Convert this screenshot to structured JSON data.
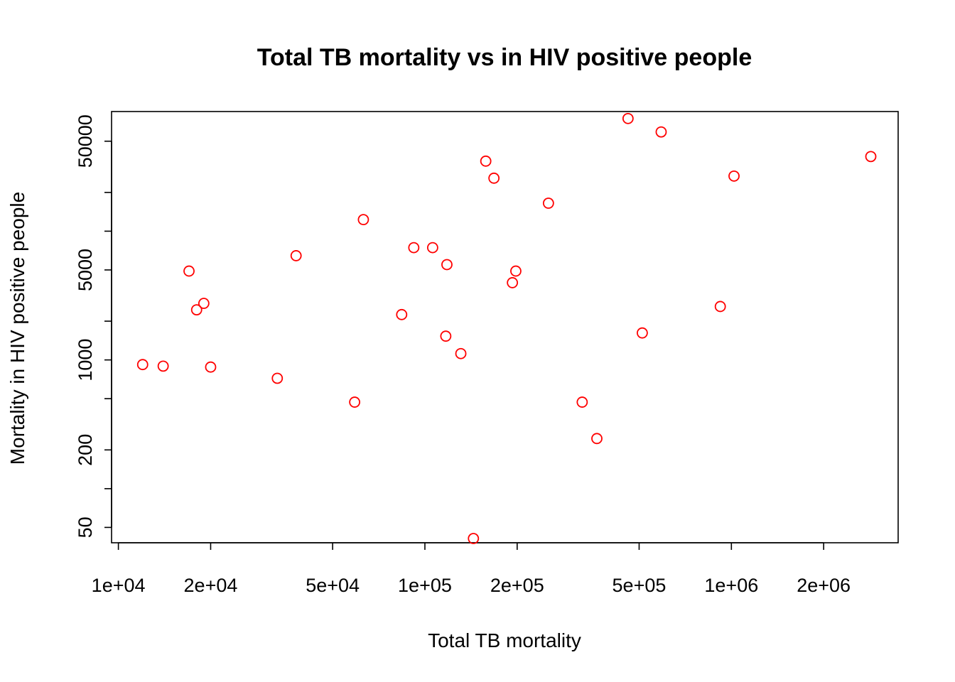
{
  "chart_data": {
    "type": "scatter",
    "title": "Total TB mortality vs in HIV positive people",
    "xlabel": "Total TB mortality",
    "ylabel": "Mortality in HIV positive people",
    "x_scale": "log",
    "y_scale": "log",
    "xlim": [
      9500,
      3500000
    ],
    "ylim": [
      38,
      85000
    ],
    "x_ticks": [
      10000,
      20000,
      50000,
      100000,
      200000,
      500000,
      1000000,
      2000000
    ],
    "x_tick_labels": [
      "1e+04",
      "2e+04",
      "5e+04",
      "1e+05",
      "2e+05",
      "5e+05",
      "1e+06",
      "2e+06"
    ],
    "y_ticks": [
      50,
      100,
      200,
      500,
      1000,
      2000,
      5000,
      10000,
      20000,
      50000
    ],
    "y_tick_labels": [
      "50",
      "",
      "200",
      "",
      "1000",
      "",
      "5000",
      "",
      "",
      "50000"
    ],
    "marker": "open-circle",
    "color": "#ff0000",
    "points": [
      {
        "x": 12000,
        "y": 920
      },
      {
        "x": 14000,
        "y": 895
      },
      {
        "x": 17000,
        "y": 4900
      },
      {
        "x": 18000,
        "y": 2450
      },
      {
        "x": 19000,
        "y": 2750
      },
      {
        "x": 20000,
        "y": 880
      },
      {
        "x": 33000,
        "y": 720
      },
      {
        "x": 38000,
        "y": 6450
      },
      {
        "x": 59000,
        "y": 470
      },
      {
        "x": 63000,
        "y": 12300
      },
      {
        "x": 84000,
        "y": 2250
      },
      {
        "x": 92000,
        "y": 7450
      },
      {
        "x": 106000,
        "y": 7450
      },
      {
        "x": 117000,
        "y": 1530
      },
      {
        "x": 118000,
        "y": 5500
      },
      {
        "x": 131000,
        "y": 1120
      },
      {
        "x": 144000,
        "y": 41
      },
      {
        "x": 158000,
        "y": 35000
      },
      {
        "x": 168000,
        "y": 25800
      },
      {
        "x": 193000,
        "y": 3980
      },
      {
        "x": 198000,
        "y": 4900
      },
      {
        "x": 253000,
        "y": 16500
      },
      {
        "x": 326000,
        "y": 470
      },
      {
        "x": 364000,
        "y": 245
      },
      {
        "x": 460000,
        "y": 75000
      },
      {
        "x": 512000,
        "y": 1620
      },
      {
        "x": 590000,
        "y": 59000
      },
      {
        "x": 920000,
        "y": 2600
      },
      {
        "x": 1020000,
        "y": 26800
      },
      {
        "x": 2850000,
        "y": 38000
      }
    ]
  }
}
